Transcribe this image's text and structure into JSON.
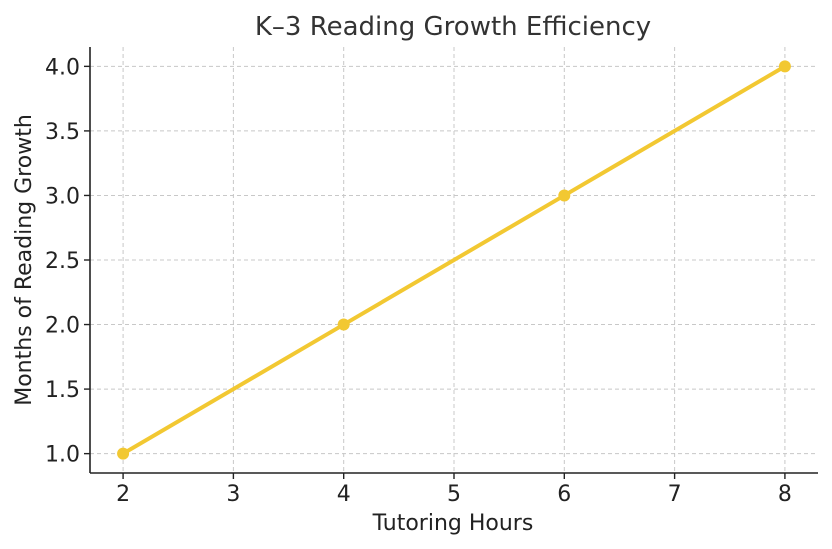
{
  "chart_data": {
    "type": "line",
    "title": "K–3 Reading Growth Efficiency",
    "xlabel": "Tutoring Hours",
    "ylabel": "Months of Reading Growth",
    "x": [
      2,
      4,
      6,
      8
    ],
    "series": [
      {
        "values": [
          1.0,
          2.0,
          3.0,
          4.0
        ],
        "color": "#f2c832"
      }
    ],
    "xlim": [
      1.7,
      8.3
    ],
    "ylim": [
      0.85,
      4.15
    ],
    "xticks": [
      2,
      3,
      4,
      5,
      6,
      7,
      8
    ],
    "xtick_labels": [
      "2",
      "3",
      "4",
      "5",
      "6",
      "7",
      "8"
    ],
    "yticks": [
      1.0,
      1.5,
      2.0,
      2.5,
      3.0,
      3.5,
      4.0
    ],
    "ytick_labels": [
      "1.0",
      "1.5",
      "2.0",
      "2.5",
      "3.0",
      "3.5",
      "4.0"
    ],
    "grid": true,
    "markers": true
  }
}
